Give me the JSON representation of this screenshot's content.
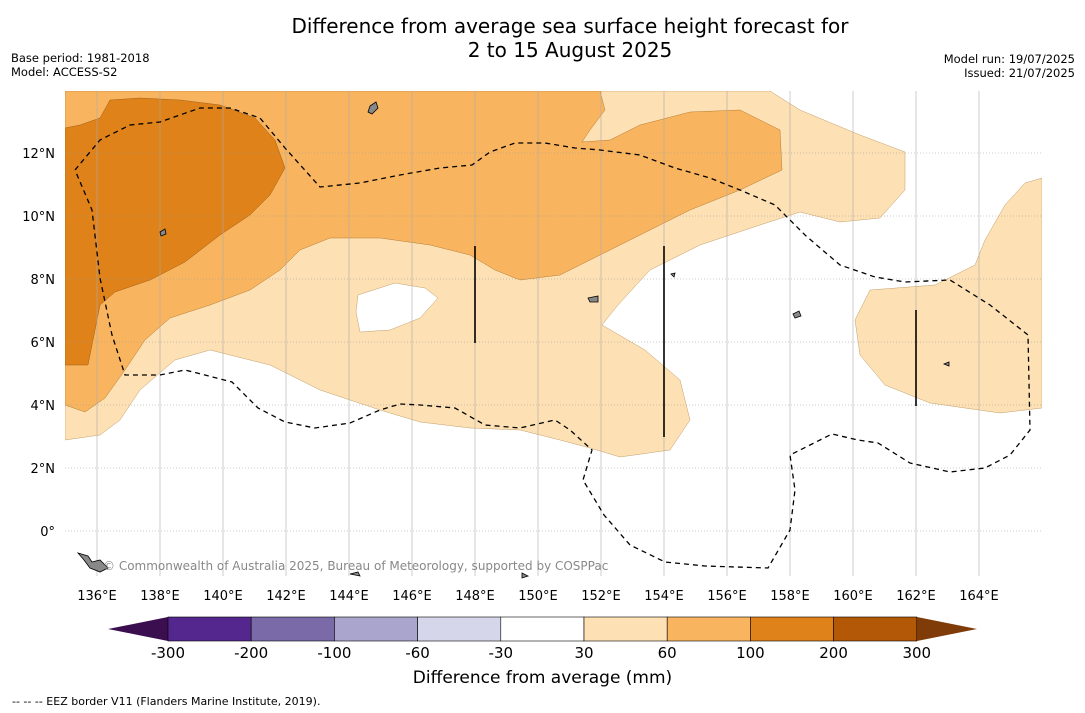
{
  "header": {
    "title_line1": "Difference from average sea surface height forecast for",
    "title_line2": "2 to 15 August 2025",
    "base_period": "Base period: 1981-2018",
    "model": "Model: ACCESS-S2",
    "model_run": "Model run: 19/07/2025",
    "issued": "Issued: 21/07/2025"
  },
  "map": {
    "lat_labels": [
      "12°N",
      "10°N",
      "8°N",
      "6°N",
      "4°N",
      "2°N",
      "0°"
    ],
    "lon_labels": [
      "136°E",
      "138°E",
      "140°E",
      "142°E",
      "144°E",
      "146°E",
      "148°E",
      "150°E",
      "152°E",
      "154°E",
      "156°E",
      "158°E",
      "160°E",
      "162°E",
      "164°E"
    ],
    "extent": {
      "lon_min": 135,
      "lon_max": 166,
      "lat_min": -1.5,
      "lat_max": 14
    },
    "credit": "© Commonwealth of Australia 2025, Bureau of Meteorology, supported by COSPPac"
  },
  "colorbar": {
    "title": "Difference from average (mm)",
    "ticks": [
      "-300",
      "-200",
      "-100",
      "-60",
      "-30",
      "30",
      "60",
      "100",
      "200",
      "300"
    ],
    "colors": {
      "below_-300": "#3b0f4f",
      "-300_-200": "#54278f",
      "-200_-100": "#7b6aa8",
      "-100_-60": "#aaa5cd",
      "-60_-30": "#d6d6ea",
      "-30_30": "#ffffff",
      "30_60": "#fde0b3",
      "60_100": "#f9b45f",
      "100_200": "#e0821a",
      "200_300": "#b35806",
      "above_300": "#7f3b08"
    }
  },
  "footer": {
    "eez_note": "-- -- -- EEZ border V11 (Flanders Marine Institute, 2019)."
  }
}
